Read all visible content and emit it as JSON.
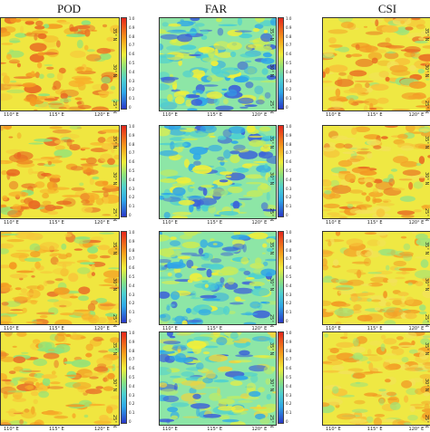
{
  "columns": [
    "POD",
    "FAR",
    "CSI"
  ],
  "colorbar": {
    "ticks": [
      "0",
      "0.1",
      "0.2",
      "0.3",
      "0.4",
      "0.5",
      "0.6",
      "0.7",
      "0.8",
      "0.9",
      "1.0"
    ],
    "colors": [
      "#2a39c9",
      "#2fa8e8",
      "#4ed0d0",
      "#8fe37b",
      "#f0ef3a",
      "#f7a21c",
      "#e6261c"
    ]
  },
  "axes": {
    "lon_labels": [
      "110° E",
      "115° E",
      "120° E"
    ],
    "lat_labels": [
      "25° N",
      "30° N",
      "35° N"
    ]
  },
  "map_tone": {
    "POD": "mostly yellow-orange with orange-red streaks",
    "FAR": "mostly cyan-green with scattered blue patches",
    "CSI": "mostly yellow-orange"
  }
}
